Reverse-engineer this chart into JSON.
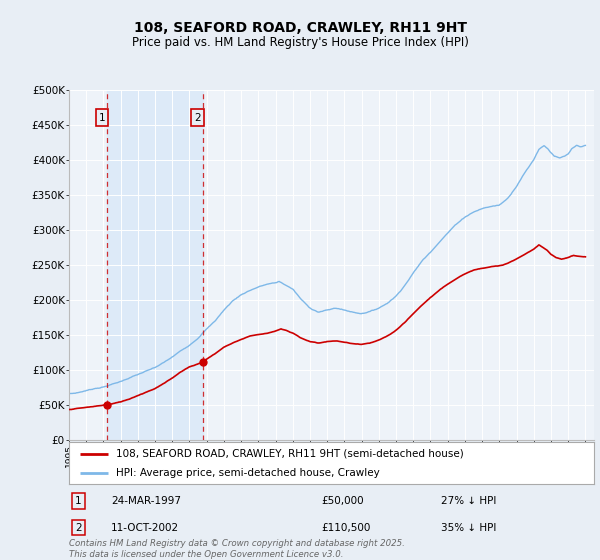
{
  "title": "108, SEAFORD ROAD, CRAWLEY, RH11 9HT",
  "subtitle": "Price paid vs. HM Land Registry's House Price Index (HPI)",
  "xlim": [
    1995,
    2025.5
  ],
  "ylim": [
    0,
    500000
  ],
  "yticks": [
    0,
    50000,
    100000,
    150000,
    200000,
    250000,
    300000,
    350000,
    400000,
    450000,
    500000
  ],
  "ytick_labels": [
    "£0",
    "£50K",
    "£100K",
    "£150K",
    "£200K",
    "£250K",
    "£300K",
    "£350K",
    "£400K",
    "£450K",
    "£500K"
  ],
  "xticks": [
    1995,
    1996,
    1997,
    1998,
    1999,
    2000,
    2001,
    2002,
    2003,
    2004,
    2005,
    2006,
    2007,
    2008,
    2009,
    2010,
    2011,
    2012,
    2013,
    2014,
    2015,
    2016,
    2017,
    2018,
    2019,
    2020,
    2021,
    2022,
    2023,
    2024,
    2025
  ],
  "hpi_color": "#7eb8e8",
  "price_color": "#cc0000",
  "shade_color": "#ddeaf8",
  "transaction1_date": 1997.22,
  "transaction1_price": 50000,
  "transaction1_label": "1",
  "transaction1_date_str": "24-MAR-1997",
  "transaction1_amount_str": "£50,000",
  "transaction1_hpi_str": "27% ↓ HPI",
  "transaction2_date": 2002.78,
  "transaction2_price": 110500,
  "transaction2_label": "2",
  "transaction2_date_str": "11-OCT-2002",
  "transaction2_amount_str": "£110,500",
  "transaction2_hpi_str": "35% ↓ HPI",
  "legend_line1": "108, SEAFORD ROAD, CRAWLEY, RH11 9HT (semi-detached house)",
  "legend_line2": "HPI: Average price, semi-detached house, Crawley",
  "footer": "Contains HM Land Registry data © Crown copyright and database right 2025.\nThis data is licensed under the Open Government Licence v3.0.",
  "bg_color": "#e8eef5",
  "plot_bg": "#eef3f9"
}
